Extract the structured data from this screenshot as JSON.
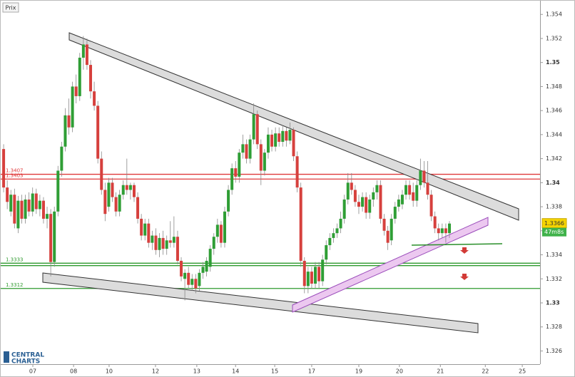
{
  "chart_data": {
    "type": "candlestick",
    "panel_label": "Prix",
    "logo": [
      "CENTRAL",
      "CHARTS"
    ],
    "up_color": "#2f9e35",
    "down_color": "#d6403d",
    "xlim": [
      -1,
      148
    ],
    "xticks": [
      {
        "value": 8.06,
        "label": "07"
      },
      {
        "value": 19.3,
        "label": "08"
      },
      {
        "value": 29.1,
        "label": "10"
      },
      {
        "value": 41.9,
        "label": "12"
      },
      {
        "value": 53.3,
        "label": "13"
      },
      {
        "value": 64,
        "label": "14"
      },
      {
        "value": 74.8,
        "label": "15"
      },
      {
        "value": 85,
        "label": "17"
      },
      {
        "value": 98,
        "label": "19"
      },
      {
        "value": 109.2,
        "label": "20"
      },
      {
        "value": 120.5,
        "label": "21"
      },
      {
        "value": 132.9,
        "label": "22"
      },
      {
        "value": 143.1,
        "label": "25"
      }
    ],
    "ylim": [
      1.3249,
      1.3552
    ],
    "yticks": [
      1.326,
      1.328,
      1.33,
      1.332,
      1.334,
      1.336,
      1.338,
      1.34,
      1.342,
      1.344,
      1.346,
      1.348,
      1.35,
      1.352,
      1.354
    ],
    "levels": [
      {
        "value": 1.3407,
        "label": "1.3407",
        "color": "#e0393b"
      },
      {
        "value": 1.3403,
        "label": "1.3403",
        "color": "#e0393b"
      },
      {
        "value": 1.3333,
        "label": "1.3333",
        "color": "#2e9a2e"
      },
      {
        "value": 1.3331,
        "color": "#2e9a2e"
      },
      {
        "value": 1.3312,
        "label": "1.3312",
        "color": "#2e9a2e"
      }
    ],
    "last_price": 1.3366,
    "timer": "47m8s",
    "candles": [
      [
        1.3428,
        1.3432,
        1.3392,
        1.3396
      ],
      [
        1.3396,
        1.3402,
        1.3378,
        1.3384
      ],
      [
        1.3376,
        1.3394,
        1.3372,
        1.339
      ],
      [
        1.339,
        1.3395,
        1.3362,
        1.3366
      ],
      [
        1.3362,
        1.3389,
        1.3358,
        1.3385
      ],
      [
        1.3385,
        1.339,
        1.3366,
        1.337
      ],
      [
        1.337,
        1.339,
        1.3366,
        1.3386
      ],
      [
        1.3386,
        1.3392,
        1.3372,
        1.3376
      ],
      [
        1.3376,
        1.3396,
        1.3372,
        1.3391
      ],
      [
        1.3391,
        1.3395,
        1.3374,
        1.3378
      ],
      [
        1.3378,
        1.339,
        1.3372,
        1.3385
      ],
      [
        1.3385,
        1.3388,
        1.3366,
        1.337
      ],
      [
        1.337,
        1.338,
        1.3362,
        1.3374
      ],
      [
        1.3374,
        1.3378,
        1.3322,
        1.3334
      ],
      [
        1.3334,
        1.338,
        1.333,
        1.3376
      ],
      [
        1.3376,
        1.3414,
        1.3372,
        1.341
      ],
      [
        1.341,
        1.3434,
        1.3405,
        1.343
      ],
      [
        1.343,
        1.3462,
        1.3426,
        1.3456
      ],
      [
        1.3456,
        1.347,
        1.344,
        1.3446
      ],
      [
        1.3446,
        1.3484,
        1.3442,
        1.348
      ],
      [
        1.348,
        1.349,
        1.3466,
        1.3472
      ],
      [
        1.3472,
        1.3508,
        1.3468,
        1.3504
      ],
      [
        1.3504,
        1.3522,
        1.3494,
        1.3515
      ],
      [
        1.3515,
        1.352,
        1.3494,
        1.3498
      ],
      [
        1.3498,
        1.3502,
        1.347,
        1.3476
      ],
      [
        1.3476,
        1.3484,
        1.346,
        1.3464
      ],
      [
        1.3464,
        1.3468,
        1.3416,
        1.342
      ],
      [
        1.342,
        1.3426,
        1.339,
        1.3394
      ],
      [
        1.3394,
        1.34,
        1.3368,
        1.3374
      ],
      [
        1.338,
        1.3404,
        1.3376,
        1.34
      ],
      [
        1.34,
        1.3404,
        1.3384,
        1.3388
      ],
      [
        1.3388,
        1.3392,
        1.3372,
        1.3376
      ],
      [
        1.3376,
        1.3394,
        1.3372,
        1.339
      ],
      [
        1.339,
        1.3402,
        1.3386,
        1.3398
      ],
      [
        1.3398,
        1.342,
        1.339,
        1.3394
      ],
      [
        1.3394,
        1.34,
        1.3386,
        1.3398
      ],
      [
        1.3398,
        1.34,
        1.3384,
        1.3388
      ],
      [
        1.3388,
        1.3392,
        1.3366,
        1.337
      ],
      [
        1.337,
        1.3374,
        1.3352,
        1.3356
      ],
      [
        1.3356,
        1.337,
        1.3352,
        1.3366
      ],
      [
        1.3366,
        1.337,
        1.3346,
        1.335
      ],
      [
        1.335,
        1.336,
        1.3344,
        1.3356
      ],
      [
        1.3356,
        1.3362,
        1.334,
        1.3344
      ],
      [
        1.3344,
        1.3358,
        1.3338,
        1.3354
      ],
      [
        1.3354,
        1.336,
        1.334,
        1.3345
      ],
      [
        1.3345,
        1.3356,
        1.334,
        1.3352
      ],
      [
        1.3352,
        1.3368,
        1.3346,
        1.335
      ],
      [
        1.335,
        1.3372,
        1.3346,
        1.3355
      ],
      [
        1.3355,
        1.336,
        1.3332,
        1.3335
      ],
      [
        1.3335,
        1.3338,
        1.3318,
        1.3322
      ],
      [
        1.332,
        1.3328,
        1.3302,
        1.3325
      ],
      [
        1.3325,
        1.333,
        1.3312,
        1.3315
      ],
      [
        1.3315,
        1.3324,
        1.331,
        1.332
      ],
      [
        1.332,
        1.3324,
        1.3308,
        1.3312
      ],
      [
        1.3314,
        1.3328,
        1.331,
        1.3325
      ],
      [
        1.3325,
        1.3334,
        1.332,
        1.333
      ],
      [
        1.3326,
        1.3338,
        1.3322,
        1.3335
      ],
      [
        1.333,
        1.3348,
        1.3326,
        1.3345
      ],
      [
        1.3345,
        1.3358,
        1.334,
        1.3355
      ],
      [
        1.3355,
        1.337,
        1.335,
        1.3365
      ],
      [
        1.3365,
        1.3368,
        1.3346,
        1.335
      ],
      [
        1.335,
        1.338,
        1.3346,
        1.3376
      ],
      [
        1.3376,
        1.3398,
        1.3372,
        1.3394
      ],
      [
        1.3394,
        1.3416,
        1.339,
        1.3412
      ],
      [
        1.3412,
        1.3418,
        1.34,
        1.3405
      ],
      [
        1.3405,
        1.3428,
        1.34,
        1.3425
      ],
      [
        1.3425,
        1.344,
        1.342,
        1.3432
      ],
      [
        1.3432,
        1.3436,
        1.3416,
        1.342
      ],
      [
        1.342,
        1.344,
        1.3416,
        1.3436
      ],
      [
        1.3436,
        1.3466,
        1.3432,
        1.3457
      ],
      [
        1.3457,
        1.346,
        1.3428,
        1.3432
      ],
      [
        1.3432,
        1.3436,
        1.3398,
        1.341
      ],
      [
        1.341,
        1.3428,
        1.3406,
        1.3425
      ],
      [
        1.3425,
        1.3446,
        1.342,
        1.344
      ],
      [
        1.344,
        1.3444,
        1.3426,
        1.343
      ],
      [
        1.343,
        1.3446,
        1.3426,
        1.3441
      ],
      [
        1.3441,
        1.3446,
        1.343,
        1.3434
      ],
      [
        1.3434,
        1.3448,
        1.343,
        1.3443
      ],
      [
        1.3443,
        1.3446,
        1.343,
        1.3435
      ],
      [
        1.3435,
        1.345,
        1.3432,
        1.3444
      ],
      [
        1.3444,
        1.3446,
        1.3418,
        1.3422
      ],
      [
        1.3422,
        1.3426,
        1.3392,
        1.3396
      ],
      [
        1.3396,
        1.34,
        1.333,
        1.3335
      ],
      [
        1.3335,
        1.3338,
        1.3308,
        1.3314
      ],
      [
        1.3314,
        1.333,
        1.3308,
        1.3326
      ],
      [
        1.3326,
        1.333,
        1.3312,
        1.3316
      ],
      [
        1.3316,
        1.3334,
        1.3312,
        1.333
      ],
      [
        1.333,
        1.3334,
        1.3312,
        1.3318
      ],
      [
        1.3318,
        1.334,
        1.3314,
        1.3336
      ],
      [
        1.3336,
        1.3352,
        1.3332,
        1.3348
      ],
      [
        1.3348,
        1.3358,
        1.3344,
        1.3354
      ],
      [
        1.3354,
        1.3362,
        1.335,
        1.3358
      ],
      [
        1.3358,
        1.3366,
        1.3354,
        1.3362
      ],
      [
        1.3362,
        1.3376,
        1.3358,
        1.337
      ],
      [
        1.337,
        1.339,
        1.3366,
        1.3386
      ],
      [
        1.3386,
        1.3408,
        1.3382,
        1.34
      ],
      [
        1.34,
        1.3408,
        1.339,
        1.3394
      ],
      [
        1.3394,
        1.3398,
        1.338,
        1.3384
      ],
      [
        1.3384,
        1.339,
        1.3374,
        1.338
      ],
      [
        1.338,
        1.3392,
        1.3376,
        1.3388
      ],
      [
        1.3388,
        1.3392,
        1.337,
        1.3375
      ],
      [
        1.3375,
        1.339,
        1.337,
        1.3386
      ],
      [
        1.3386,
        1.3396,
        1.338,
        1.3392
      ],
      [
        1.3392,
        1.3402,
        1.3386,
        1.3398
      ],
      [
        1.3398,
        1.3402,
        1.3366,
        1.337
      ],
      [
        1.337,
        1.3374,
        1.3356,
        1.336
      ],
      [
        1.336,
        1.3364,
        1.3344,
        1.335
      ],
      [
        1.3352,
        1.3374,
        1.3348,
        1.337
      ],
      [
        1.337,
        1.3384,
        1.3366,
        1.338
      ],
      [
        1.338,
        1.339,
        1.3376,
        1.3386
      ],
      [
        1.3382,
        1.3394,
        1.3378,
        1.339
      ],
      [
        1.339,
        1.3402,
        1.3386,
        1.3398
      ],
      [
        1.3398,
        1.3402,
        1.3386,
        1.339
      ],
      [
        1.3392,
        1.34,
        1.338,
        1.3385
      ],
      [
        1.3385,
        1.3402,
        1.338,
        1.3398
      ],
      [
        1.3398,
        1.342,
        1.3394,
        1.341
      ],
      [
        1.341,
        1.3418,
        1.3396,
        1.34
      ],
      [
        1.34,
        1.3418,
        1.3386,
        1.339
      ],
      [
        1.339,
        1.3394,
        1.3368,
        1.3372
      ],
      [
        1.3372,
        1.3376,
        1.3358,
        1.3362
      ],
      [
        1.3362,
        1.3366,
        1.3352,
        1.3358
      ],
      [
        1.3358,
        1.3366,
        1.3354,
        1.3362
      ],
      [
        1.3362,
        1.3366,
        1.335,
        1.3358
      ],
      [
        1.3358,
        1.3368,
        1.3354,
        1.3366
      ]
    ]
  }
}
